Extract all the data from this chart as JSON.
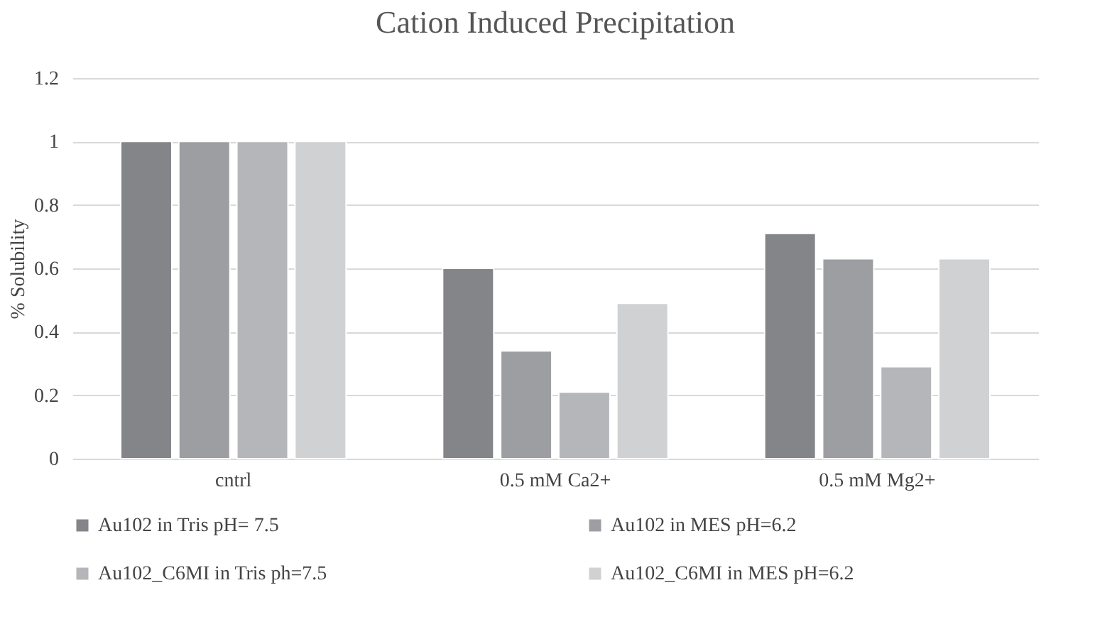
{
  "chart_data": {
    "type": "bar",
    "title": "Cation Induced Precipitation",
    "ylabel": "% Solubility",
    "categories": [
      "cntrl",
      "0.5 mM Ca2+",
      "0.5 mM Mg2+"
    ],
    "series": [
      {
        "name": "Au102 in Tris pH= 7.5",
        "color": "#848589",
        "values": [
          1,
          0.6,
          0.71
        ]
      },
      {
        "name": "Au102 in MES pH=6.2",
        "color": "#9d9ea2",
        "values": [
          1,
          0.34,
          0.63
        ]
      },
      {
        "name": "Au102_C6MI in Tris ph=7.5",
        "color": "#b5b6b9",
        "values": [
          1,
          0.21,
          0.29
        ]
      },
      {
        "name": "Au102_C6MI in MES pH=6.2",
        "color": "#d0d1d3",
        "values": [
          1,
          0.49,
          0.63
        ]
      }
    ],
    "ylim": [
      0,
      1.2
    ],
    "yticks": [
      0,
      0.2,
      0.4,
      0.6,
      0.8,
      1,
      1.2
    ],
    "grid": "y",
    "legend": "bottom"
  }
}
